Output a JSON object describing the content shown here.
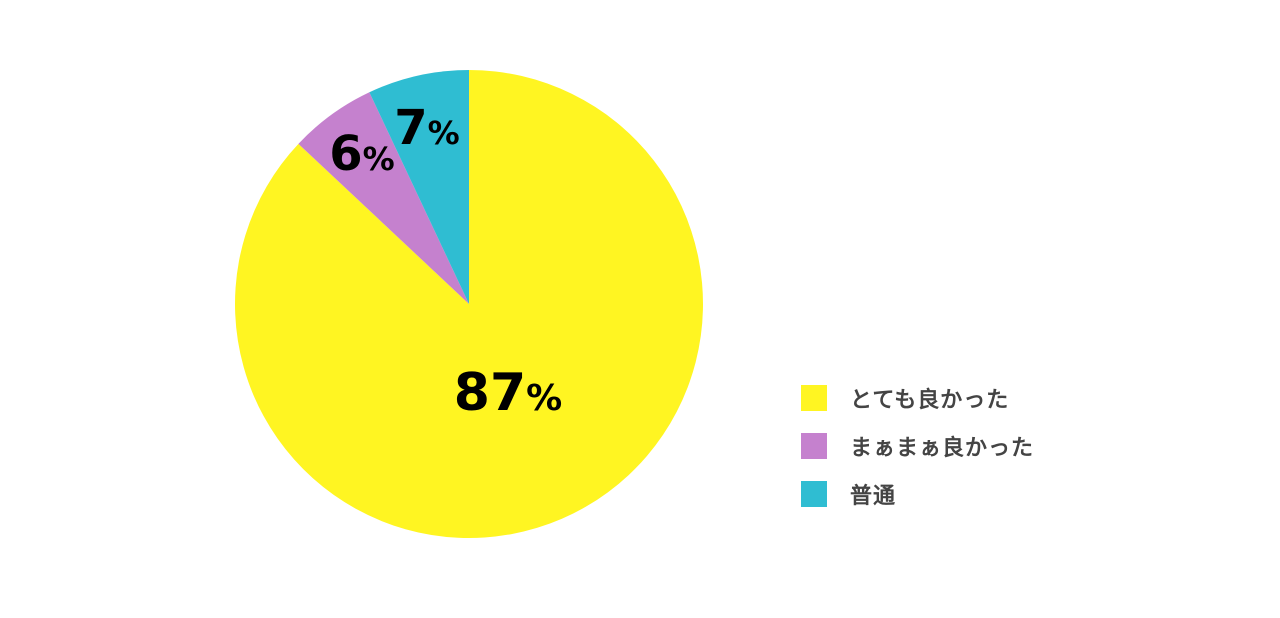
{
  "chart_data": {
    "type": "pie",
    "start": "12 o'clock",
    "direction": "clockwise",
    "slices": [
      {
        "name": "とても良かった",
        "value": 87,
        "color": "#FFF522"
      },
      {
        "name": "まぁまぁ良かった",
        "value": 6,
        "color": "#C581CE"
      },
      {
        "name": "普通",
        "value": 7,
        "color": "#2FBDD2"
      }
    ],
    "unit": "%",
    "legend_position": "right"
  }
}
